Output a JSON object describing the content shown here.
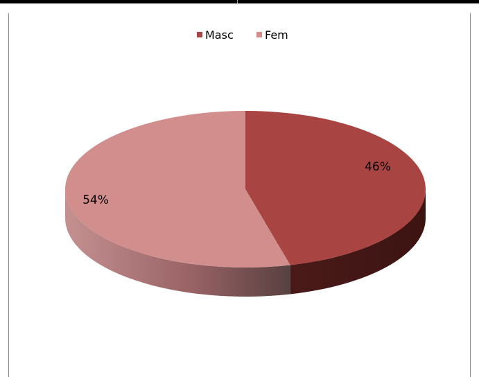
{
  "chart_data": {
    "type": "pie",
    "categories": [
      "Masc",
      "Fem"
    ],
    "values": [
      46,
      54
    ],
    "data_labels": [
      "46%",
      "54%"
    ],
    "legend_position": "top",
    "colors": {
      "Masc": "#a84442",
      "Fem": "#d28e8c",
      "Masc_side": "#4b1a18",
      "Fem_side": "#8a5c5c"
    }
  }
}
